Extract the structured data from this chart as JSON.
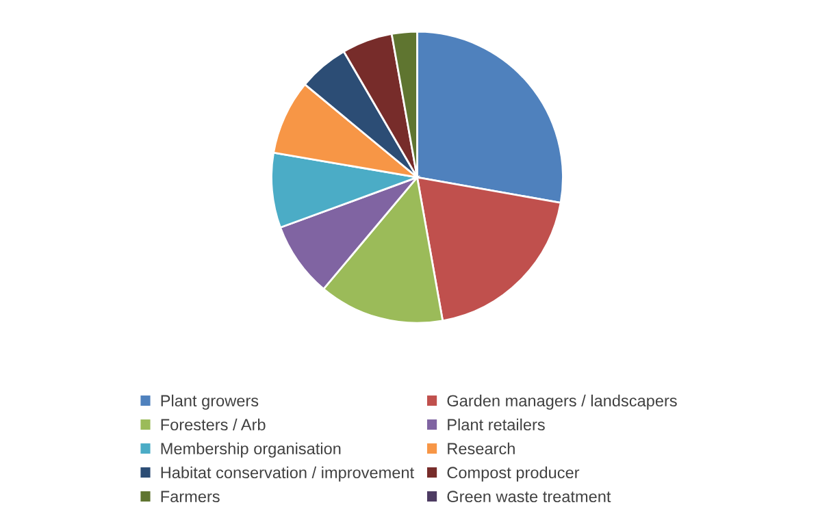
{
  "chart_data": {
    "type": "pie",
    "categories": [
      "Plant growers",
      "Garden managers / landscapers",
      "Foresters / Arb",
      "Plant retailers",
      "Membership organisation",
      "Research",
      "Habitat conservation / improvement",
      "Compost producer",
      "Farmers",
      "Green waste treatment"
    ],
    "values": [
      27.8,
      19.4,
      13.9,
      8.3,
      8.3,
      8.3,
      5.6,
      5.6,
      2.8,
      0
    ],
    "colors": [
      "#4f81bd",
      "#c0504d",
      "#9bbb59",
      "#8064a2",
      "#4bacc6",
      "#f79646",
      "#2c4d75",
      "#772c2a",
      "#5f7530",
      "#4d3b62"
    ],
    "legend": "bottom"
  }
}
